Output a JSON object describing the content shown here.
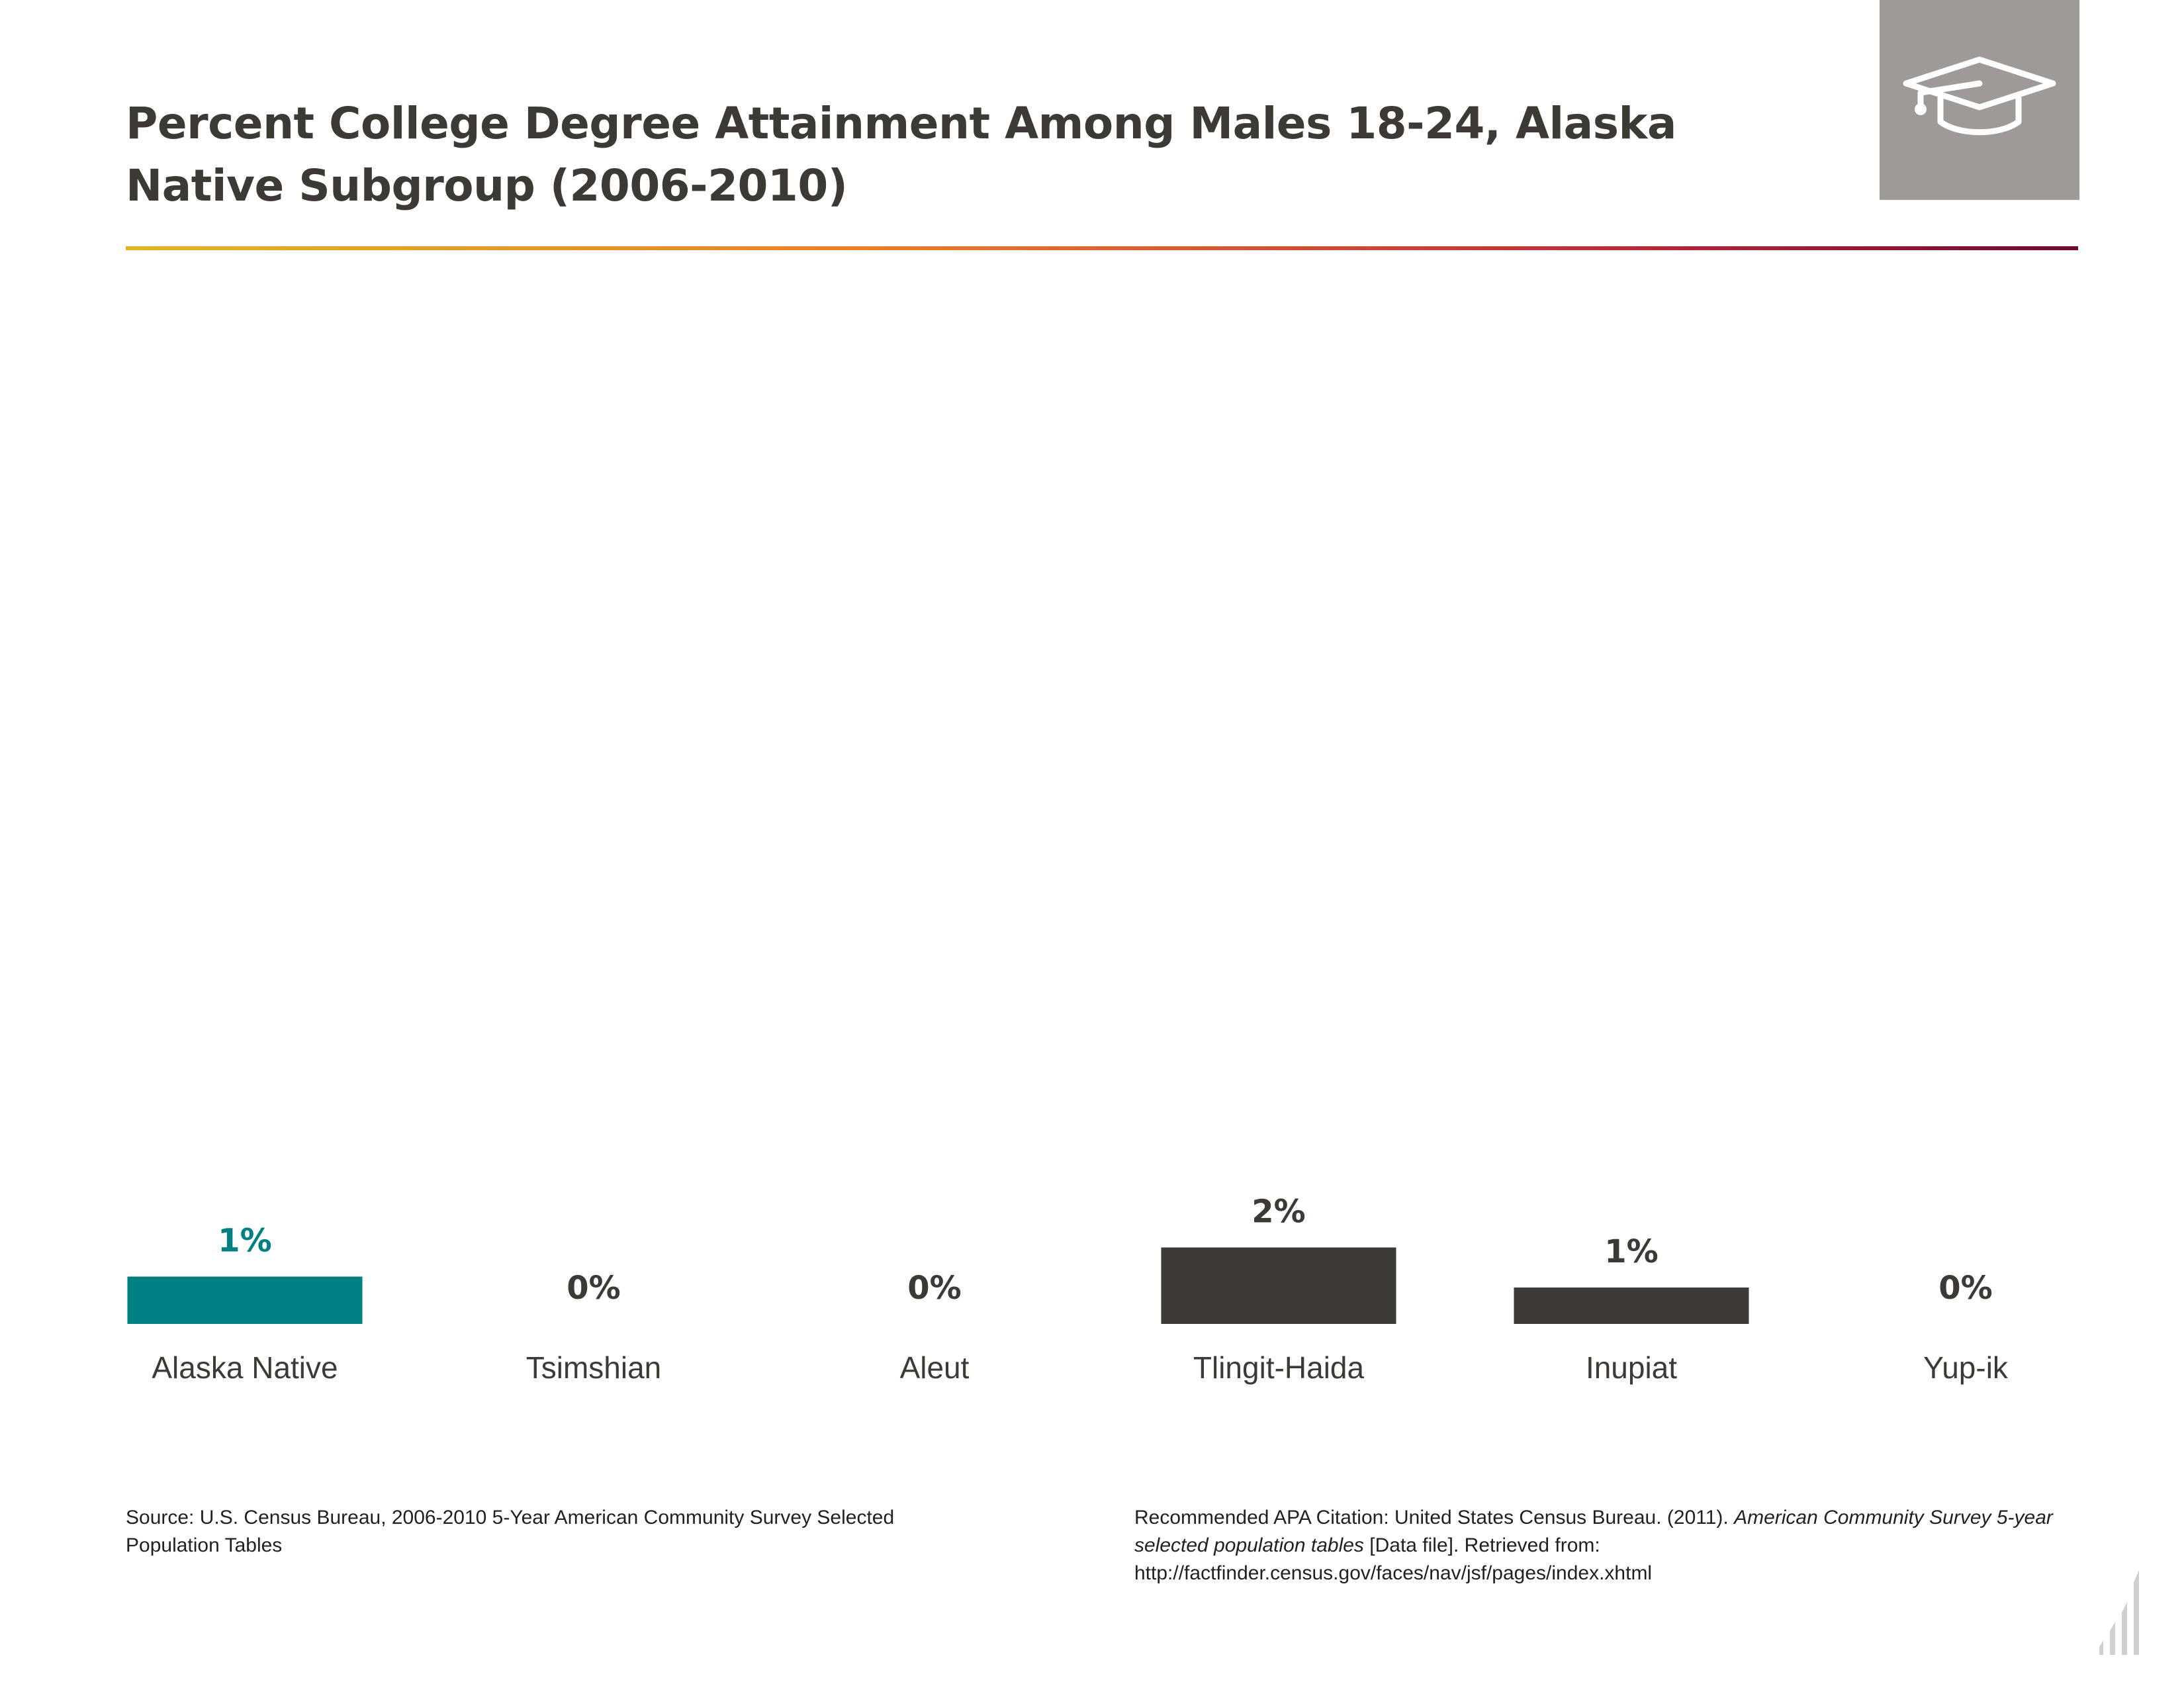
{
  "title": "Percent College Degree Attainment Among Males 18-24, Alaska Native Subgroup (2006-2010)",
  "header_icon": "graduation-cap-icon",
  "colors": {
    "highlight": "#008080",
    "bar": "#3d3935",
    "icon_box": "#9e9a97",
    "rule_gradient": [
      "#e3b422",
      "#e6812d",
      "#b8303a",
      "#6e0a2f"
    ]
  },
  "chart_data": {
    "type": "bar",
    "title": "Percent College Degree Attainment Among Males 18-24, Alaska Native Subgroup (2006-2010)",
    "categories": [
      "Alaska Native",
      "Tsimshian",
      "Aleut",
      "Tlingit-Haida",
      "Inupiat",
      "Yup-ik"
    ],
    "values": [
      1.3,
      0,
      0,
      2.1,
      1.0,
      0
    ],
    "labels": [
      "1%",
      "0%",
      "0%",
      "2%",
      "1%",
      "0%"
    ],
    "highlight_category": "Alaska Native",
    "xlabel": "",
    "ylabel": "",
    "grid": false,
    "legend": "none"
  },
  "footer": {
    "source": "Source: U.S. Census Bureau, 2006-2010 5-Year American Community Survey Selected Population Tables",
    "citation_pre": "Recommended APA Citation: United States Census Bureau. (2011). ",
    "citation_italic": "American Community Survey 5-year selected population tables",
    "citation_post": " [Data file]. Retrieved from: http://factfinder.census.gov/faces/nav/jsf/pages/index.xhtml"
  },
  "corner_icon": "bar-chart-logo-icon"
}
